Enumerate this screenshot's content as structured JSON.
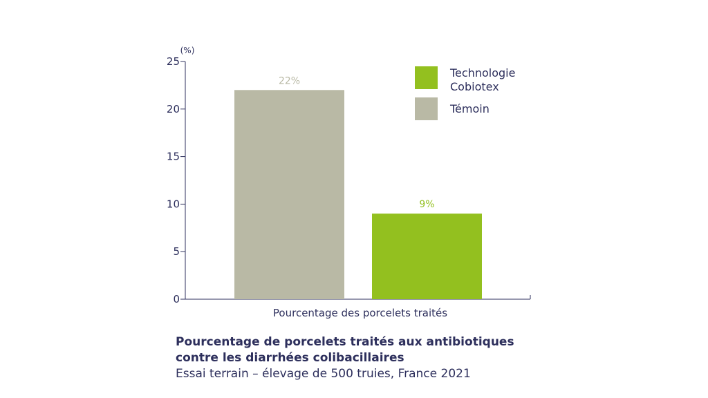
{
  "chart_data": {
    "type": "bar",
    "categories": [
      "Témoin",
      "Technologie Cobiotex"
    ],
    "values": [
      22,
      9
    ],
    "data_labels": [
      "22%",
      "9%"
    ],
    "colors": [
      "#b9b9a5",
      "#93c01f"
    ],
    "unit_label": "(%)",
    "xlabel": "Pourcentage des porcelets traités",
    "ylim": [
      0,
      25
    ],
    "yticks": [
      0,
      5,
      10,
      15,
      20,
      25
    ],
    "grid": false,
    "legend": {
      "placement": "top-right",
      "entries": [
        {
          "lines": [
            "Technologie",
            "Cobiotex"
          ],
          "color": "#93c01f"
        },
        {
          "lines": [
            "Témoin"
          ],
          "color": "#b9b9a5"
        }
      ]
    }
  },
  "caption": {
    "title_line1": "Pourcentage de porcelets traités aux antibiotiques",
    "title_line2": "contre les diarrhées colibacillaires",
    "subtitle": "Essai terrain – élevage de 500 truies, France 2021"
  },
  "colors": {
    "text": "#2d2f5c",
    "axis": "#2d2f5c"
  }
}
